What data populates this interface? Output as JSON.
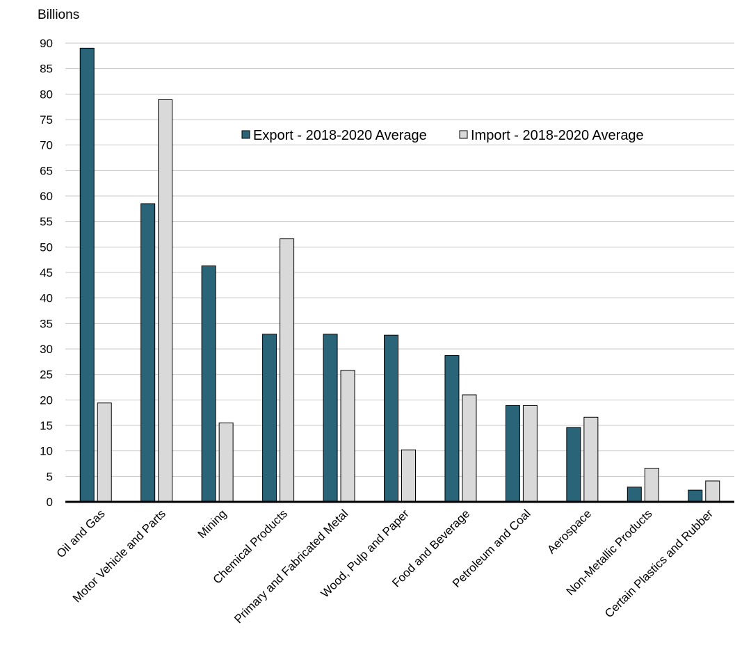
{
  "chart_data": {
    "type": "bar",
    "ylabel": "Billions",
    "xlabel": "",
    "title": "",
    "ylim": [
      0,
      90
    ],
    "yticks": [
      0,
      5,
      10,
      15,
      20,
      25,
      30,
      35,
      40,
      45,
      50,
      55,
      60,
      65,
      70,
      75,
      80,
      85,
      90
    ],
    "grid": true,
    "legend_position": "top-center",
    "categories": [
      "Oil and Gas",
      "Motor Vehicle and Parts",
      "Mining",
      "Chemical Products",
      "Primary and Fabricated Metal",
      "Wood, Pulp and Paper",
      "Food and Beverage",
      "Petroleum and Coal",
      "Aerospace",
      "Non-Metallic Products",
      "Certain Plastics and Rubber"
    ],
    "series": [
      {
        "name": "Export - 2018-2020 Average",
        "color": "#2a6478",
        "values": [
          89.0,
          58.5,
          46.3,
          32.9,
          32.9,
          32.7,
          28.7,
          18.9,
          14.6,
          2.9,
          2.3
        ]
      },
      {
        "name": "Import - 2018-2020 Average",
        "color": "#d9d9d9",
        "values": [
          19.4,
          78.9,
          15.5,
          51.6,
          25.8,
          10.2,
          21.0,
          18.9,
          16.6,
          6.6,
          4.1
        ]
      }
    ]
  }
}
